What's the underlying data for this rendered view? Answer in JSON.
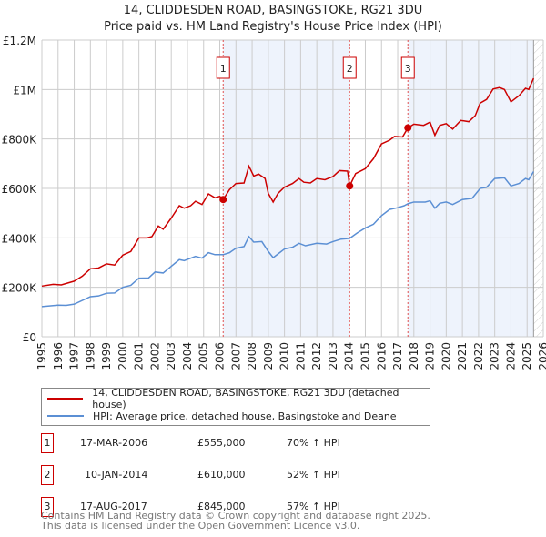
{
  "title": "14, CLIDDESDEN ROAD, BASINGSTOKE, RG21 3DU",
  "subtitle": "Price paid vs. HM Land Registry's House Price Index (HPI)",
  "chart_data": {
    "type": "line",
    "xlim": [
      1995,
      2026
    ],
    "ylim": [
      0,
      1200000
    ],
    "x_ticks": [
      "1995",
      "1996",
      "1997",
      "1998",
      "1999",
      "2000",
      "2001",
      "2002",
      "2003",
      "2004",
      "2005",
      "2006",
      "2007",
      "2008",
      "2009",
      "2010",
      "2011",
      "2012",
      "2013",
      "2014",
      "2015",
      "2016",
      "2017",
      "2018",
      "2019",
      "2020",
      "2021",
      "2022",
      "2023",
      "2024",
      "2025",
      "2026"
    ],
    "y_ticks": [
      {
        "v": 0,
        "label": "£0"
      },
      {
        "v": 200000,
        "label": "£200K"
      },
      {
        "v": 400000,
        "label": "£400K"
      },
      {
        "v": 600000,
        "label": "£600K"
      },
      {
        "v": 800000,
        "label": "£800K"
      },
      {
        "v": 1000000,
        "label": "£1M"
      },
      {
        "v": 1200000,
        "label": "£1.2M"
      }
    ],
    "grid": true,
    "shaded_ranges": [
      [
        2006.21,
        2014.03
      ],
      [
        2017.63,
        2025.4
      ]
    ],
    "future_from": 2025.4,
    "series": [
      {
        "name": "14, CLIDDESDEN ROAD, BASINGSTOKE, RG21 3DU (detached house)",
        "color": "#cc0000",
        "points": [
          [
            1995,
            205000
          ],
          [
            1995.7,
            212000
          ],
          [
            1996.2,
            210000
          ],
          [
            1997,
            225000
          ],
          [
            1997.5,
            245000
          ],
          [
            1998,
            275000
          ],
          [
            1998.5,
            278000
          ],
          [
            1999,
            295000
          ],
          [
            1999.5,
            290000
          ],
          [
            2000,
            330000
          ],
          [
            2000.5,
            345000
          ],
          [
            2001,
            400000
          ],
          [
            2001.5,
            400000
          ],
          [
            2001.8,
            405000
          ],
          [
            2002.2,
            448000
          ],
          [
            2002.5,
            435000
          ],
          [
            2003,
            480000
          ],
          [
            2003.5,
            530000
          ],
          [
            2003.8,
            520000
          ],
          [
            2004.2,
            530000
          ],
          [
            2004.5,
            548000
          ],
          [
            2004.9,
            535000
          ],
          [
            2005.3,
            578000
          ],
          [
            2005.7,
            562000
          ],
          [
            2006,
            568000
          ],
          [
            2006.21,
            555000
          ],
          [
            2006.6,
            595000
          ],
          [
            2007,
            620000
          ],
          [
            2007.5,
            622000
          ],
          [
            2007.8,
            690000
          ],
          [
            2008.1,
            650000
          ],
          [
            2008.4,
            658000
          ],
          [
            2008.8,
            640000
          ],
          [
            2009,
            580000
          ],
          [
            2009.3,
            545000
          ],
          [
            2009.6,
            580000
          ],
          [
            2010,
            605000
          ],
          [
            2010.5,
            620000
          ],
          [
            2010.9,
            640000
          ],
          [
            2011.2,
            625000
          ],
          [
            2011.6,
            622000
          ],
          [
            2012,
            640000
          ],
          [
            2012.5,
            635000
          ],
          [
            2013,
            648000
          ],
          [
            2013.4,
            672000
          ],
          [
            2013.9,
            670000
          ],
          [
            2014.03,
            610000
          ],
          [
            2014.4,
            660000
          ],
          [
            2015,
            680000
          ],
          [
            2015.5,
            720000
          ],
          [
            2016,
            780000
          ],
          [
            2016.5,
            795000
          ],
          [
            2016.8,
            810000
          ],
          [
            2017.3,
            808000
          ],
          [
            2017.63,
            845000
          ],
          [
            2018,
            860000
          ],
          [
            2018.6,
            855000
          ],
          [
            2019,
            868000
          ],
          [
            2019.3,
            815000
          ],
          [
            2019.6,
            855000
          ],
          [
            2020,
            862000
          ],
          [
            2020.4,
            840000
          ],
          [
            2020.9,
            875000
          ],
          [
            2021.4,
            870000
          ],
          [
            2021.8,
            895000
          ],
          [
            2022.1,
            945000
          ],
          [
            2022.5,
            960000
          ],
          [
            2022.9,
            1002000
          ],
          [
            2023.3,
            1008000
          ],
          [
            2023.6,
            1000000
          ],
          [
            2024,
            950000
          ],
          [
            2024.5,
            975000
          ],
          [
            2024.9,
            1005000
          ],
          [
            2025.1,
            1000000
          ],
          [
            2025.4,
            1045000
          ]
        ]
      },
      {
        "name": "HPI: Average price, detached house, Basingstoke and Deane",
        "color": "#5b8fd4",
        "points": [
          [
            1995,
            122000
          ],
          [
            1996,
            128000
          ],
          [
            1996.5,
            127000
          ],
          [
            1997,
            132000
          ],
          [
            1998,
            162000
          ],
          [
            1998.5,
            165000
          ],
          [
            1999,
            176000
          ],
          [
            1999.5,
            177000
          ],
          [
            2000,
            200000
          ],
          [
            2000.5,
            208000
          ],
          [
            2001,
            237000
          ],
          [
            2001.6,
            238000
          ],
          [
            2002,
            262000
          ],
          [
            2002.5,
            258000
          ],
          [
            2003,
            285000
          ],
          [
            2003.5,
            312000
          ],
          [
            2003.8,
            308000
          ],
          [
            2004.5,
            325000
          ],
          [
            2004.9,
            318000
          ],
          [
            2005.3,
            340000
          ],
          [
            2005.7,
            332000
          ],
          [
            2006.21,
            332000
          ],
          [
            2006.6,
            340000
          ],
          [
            2007,
            358000
          ],
          [
            2007.5,
            365000
          ],
          [
            2007.8,
            405000
          ],
          [
            2008.1,
            383000
          ],
          [
            2008.6,
            385000
          ],
          [
            2009,
            345000
          ],
          [
            2009.3,
            320000
          ],
          [
            2009.6,
            335000
          ],
          [
            2010,
            355000
          ],
          [
            2010.5,
            362000
          ],
          [
            2010.9,
            378000
          ],
          [
            2011.3,
            368000
          ],
          [
            2012,
            378000
          ],
          [
            2012.6,
            375000
          ],
          [
            2013,
            385000
          ],
          [
            2013.5,
            395000
          ],
          [
            2014.03,
            398000
          ],
          [
            2014.5,
            420000
          ],
          [
            2015,
            440000
          ],
          [
            2015.5,
            455000
          ],
          [
            2016,
            490000
          ],
          [
            2016.5,
            515000
          ],
          [
            2017,
            522000
          ],
          [
            2017.4,
            530000
          ],
          [
            2017.63,
            538000
          ],
          [
            2018,
            545000
          ],
          [
            2018.7,
            545000
          ],
          [
            2019,
            550000
          ],
          [
            2019.3,
            520000
          ],
          [
            2019.6,
            540000
          ],
          [
            2020,
            545000
          ],
          [
            2020.4,
            535000
          ],
          [
            2021,
            555000
          ],
          [
            2021.6,
            560000
          ],
          [
            2022.1,
            600000
          ],
          [
            2022.5,
            605000
          ],
          [
            2023,
            640000
          ],
          [
            2023.6,
            643000
          ],
          [
            2024,
            610000
          ],
          [
            2024.5,
            620000
          ],
          [
            2024.9,
            640000
          ],
          [
            2025.1,
            635000
          ],
          [
            2025.4,
            668000
          ]
        ]
      }
    ],
    "sales": [
      {
        "label": "1",
        "x": 2006.21,
        "y": 555000
      },
      {
        "label": "2",
        "x": 2014.03,
        "y": 610000
      },
      {
        "label": "3",
        "x": 2017.63,
        "y": 845000
      }
    ]
  },
  "legend": [
    "14, CLIDDESDEN ROAD, BASINGSTOKE, RG21 3DU (detached house)",
    "HPI: Average price, detached house, Basingstoke and Deane"
  ],
  "transactions": [
    {
      "num": "1",
      "date": "17-MAR-2006",
      "price": "£555,000",
      "hpi": "70% ↑ HPI"
    },
    {
      "num": "2",
      "date": "10-JAN-2014",
      "price": "£610,000",
      "hpi": "52% ↑ HPI"
    },
    {
      "num": "3",
      "date": "17-AUG-2017",
      "price": "£845,000",
      "hpi": "57% ↑ HPI"
    }
  ],
  "footer": [
    "Contains HM Land Registry data © Crown copyright and database right 2025.",
    "This data is licensed under the Open Government Licence v3.0."
  ]
}
